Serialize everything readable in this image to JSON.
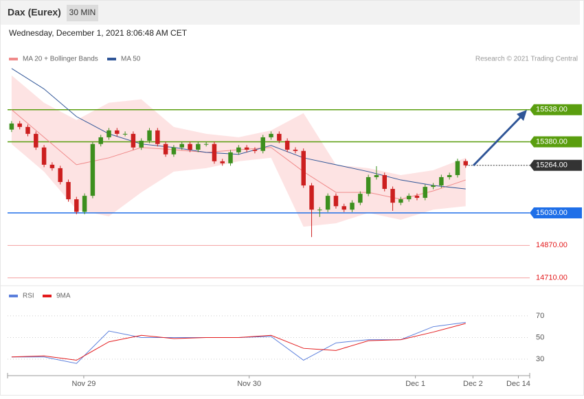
{
  "header": {
    "title": "Dax (Eurex)",
    "timeframe": "30 MIN",
    "date": "Wednesday, December 1, 2021 8:06:48 AM CET"
  },
  "chart_data": [
    {
      "type": "candlestick",
      "legend": [
        {
          "name": "MA 20 + Bollinger Bands",
          "color": "#f08a8a"
        },
        {
          "name": "MA 50",
          "color": "#2f5597"
        }
      ],
      "credit": "Research © 2021 Trading Central",
      "up_color": "#3d8f1e",
      "down_color": "#cc1f1f",
      "open": [
        15440,
        15470,
        15453,
        15419,
        15352,
        15267,
        15250,
        15182,
        15097,
        15035,
        15114,
        15369,
        15402,
        15436,
        15419,
        15419,
        15352,
        15385,
        15436,
        15369,
        15318,
        15352,
        15369,
        15341,
        15369,
        15369,
        15284,
        15274,
        15328,
        15352,
        15341,
        15335,
        15402,
        15419,
        15385,
        15341,
        15335,
        15165,
        15046,
        15046,
        15114,
        15063,
        15046,
        15080,
        15124,
        15206,
        15216,
        15148,
        15080,
        15097,
        15114,
        15104,
        15158,
        15165,
        15206,
        15216,
        15285
      ],
      "high": [
        15482,
        15482,
        15465,
        15431,
        15364,
        15279,
        15262,
        15194,
        15109,
        15126,
        15381,
        15414,
        15448,
        15448,
        15431,
        15431,
        15397,
        15448,
        15448,
        15381,
        15364,
        15381,
        15381,
        15381,
        15381,
        15381,
        15296,
        15340,
        15364,
        15364,
        15353,
        15414,
        15431,
        15431,
        15397,
        15353,
        15347,
        15177,
        15058,
        15126,
        15126,
        15075,
        15092,
        15136,
        15218,
        15260,
        15228,
        15160,
        15109,
        15126,
        15126,
        15170,
        15177,
        15218,
        15228,
        15297,
        15295
      ],
      "low": [
        15428,
        15441,
        15407,
        15340,
        15255,
        15238,
        15170,
        15085,
        15023,
        15023,
        15102,
        15357,
        15390,
        15407,
        15407,
        15340,
        15340,
        15373,
        15357,
        15306,
        15306,
        15340,
        15329,
        15329,
        15357,
        15272,
        15262,
        15262,
        15316,
        15329,
        15323,
        15323,
        15390,
        15373,
        15329,
        15323,
        15153,
        14911,
        15010,
        15034,
        15051,
        15034,
        15034,
        15068,
        15112,
        15194,
        15136,
        15040,
        15068,
        15085,
        15092,
        15092,
        15146,
        15153,
        15194,
        15204,
        15252
      ],
      "close": [
        15470,
        15453,
        15419,
        15352,
        15267,
        15250,
        15182,
        15097,
        15035,
        15114,
        15369,
        15402,
        15436,
        15419,
        15419,
        15352,
        15385,
        15436,
        15369,
        15318,
        15352,
        15369,
        15341,
        15369,
        15369,
        15284,
        15274,
        15328,
        15352,
        15341,
        15335,
        15402,
        15419,
        15385,
        15341,
        15335,
        15165,
        15046,
        15046,
        15114,
        15063,
        15046,
        15080,
        15124,
        15206,
        15216,
        15148,
        15080,
        15097,
        15114,
        15104,
        15158,
        15165,
        15206,
        15216,
        15285,
        15264
      ],
      "ma_x": [
        1,
        5,
        9,
        13,
        17,
        21,
        25,
        29,
        33,
        37,
        41,
        45,
        49,
        53,
        57
      ],
      "ma20": [
        15538,
        15402,
        15267,
        15301,
        15352,
        15341,
        15328,
        15341,
        15352,
        15233,
        15131,
        15131,
        15097,
        15138,
        15192
      ],
      "ma50": [
        15741,
        15640,
        15504,
        15419,
        15369,
        15352,
        15328,
        15318,
        15362,
        15301,
        15267,
        15233,
        15192,
        15165,
        15148
      ],
      "band_upper": [
        15707,
        15572,
        15487,
        15572,
        15589,
        15453,
        15419,
        15402,
        15436,
        15521,
        15267,
        15250,
        15216,
        15240,
        15301
      ],
      "band_lower": [
        15369,
        15233,
        15046,
        15013,
        15131,
        15233,
        15250,
        15284,
        15301,
        14962,
        14979,
        15030,
        14996,
        15046,
        15063
      ],
      "levels": [
        {
          "value": 15538,
          "label": "15538.00",
          "color": "#5a9e0f",
          "boxed": true
        },
        {
          "value": 15380,
          "label": "15380.00",
          "color": "#5a9e0f",
          "boxed": true
        },
        {
          "value": 15264,
          "label": "15264.00",
          "color": "#333333",
          "boxed": true
        },
        {
          "value": 15030,
          "label": "15030.00",
          "color": "#1f6fe8",
          "boxed": true
        },
        {
          "value": 14870,
          "label": "14870.00",
          "color": "#e31a1c",
          "boxed": false
        },
        {
          "value": 14710,
          "label": "14710.00",
          "color": "#e31a1c",
          "boxed": false
        }
      ],
      "xlim": [
        0.5,
        64.9
      ],
      "ylim": [
        14675,
        15875
      ],
      "xticks": [
        {
          "value": 9.9,
          "label": "Nov 29"
        },
        {
          "value": 30.3,
          "label": "Nov 30"
        },
        {
          "value": 50.8,
          "label": "Dec 1"
        },
        {
          "value": 57.9,
          "label": "Dec 2"
        },
        {
          "value": 63.5,
          "label": "Dec 14"
        }
      ]
    },
    {
      "type": "line",
      "x": [
        1,
        5,
        9,
        13,
        17,
        21,
        25,
        29,
        33,
        37,
        41,
        45,
        49,
        53,
        57
      ],
      "series": [
        {
          "name": "RSI",
          "color": "#5b7fdc",
          "values": [
            32,
            32,
            26,
            56,
            50,
            50,
            50,
            50,
            51,
            29,
            45,
            48,
            48,
            60,
            64
          ]
        },
        {
          "name": "9MA",
          "color": "#e31a1c",
          "values": [
            32,
            33,
            29,
            46,
            52,
            49,
            50,
            50,
            52,
            40,
            38,
            47,
            48,
            55,
            63
          ]
        }
      ],
      "ylim": [
        16,
        89
      ],
      "yticks": [
        30,
        50,
        70
      ]
    }
  ]
}
